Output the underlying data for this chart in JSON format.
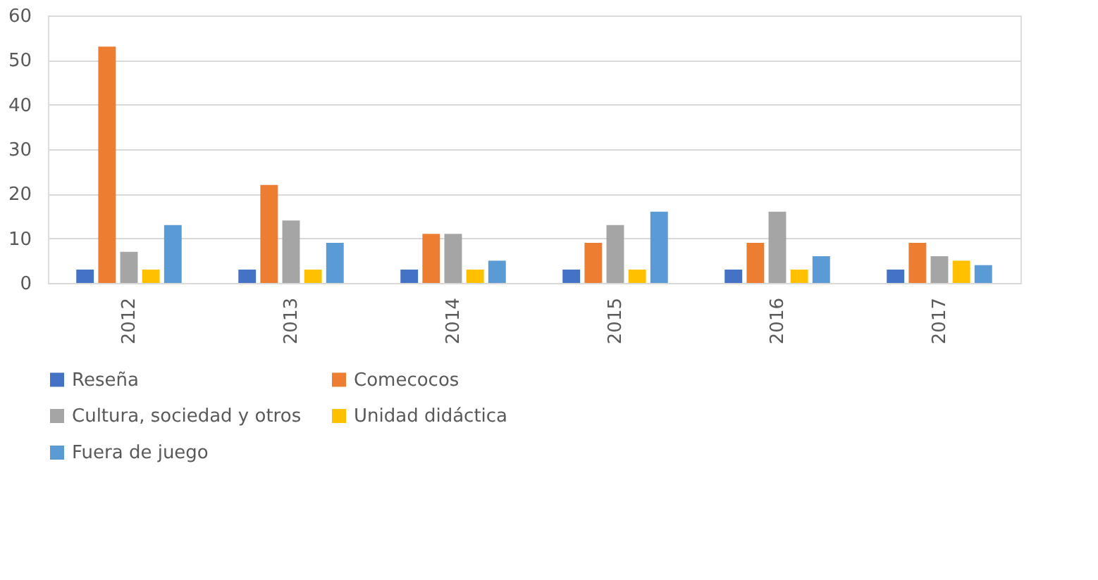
{
  "chart_data": {
    "type": "bar",
    "categories": [
      "2012",
      "2013",
      "2014",
      "2015",
      "2016",
      "2017"
    ],
    "series": [
      {
        "name": "Reseña",
        "color": "#4472c4",
        "values": [
          3,
          3,
          3,
          3,
          3,
          3
        ]
      },
      {
        "name": "Comecocos",
        "color": "#ed7d31",
        "values": [
          53,
          22,
          11,
          9,
          9,
          9
        ]
      },
      {
        "name": "Cultura, sociedad y otros",
        "color": "#a5a5a5",
        "values": [
          7,
          14,
          11,
          13,
          16,
          6
        ]
      },
      {
        "name": "Unidad didáctica",
        "color": "#ffc000",
        "values": [
          3,
          3,
          3,
          3,
          3,
          5
        ]
      },
      {
        "name": "Fuera de juego",
        "color": "#5b9bd5",
        "values": [
          13,
          9,
          5,
          16,
          6,
          4
        ]
      }
    ],
    "ylim": [
      0,
      60
    ],
    "yticks": [
      0,
      10,
      20,
      30,
      40,
      50,
      60
    ],
    "grid": "y",
    "legend": "bottom"
  }
}
